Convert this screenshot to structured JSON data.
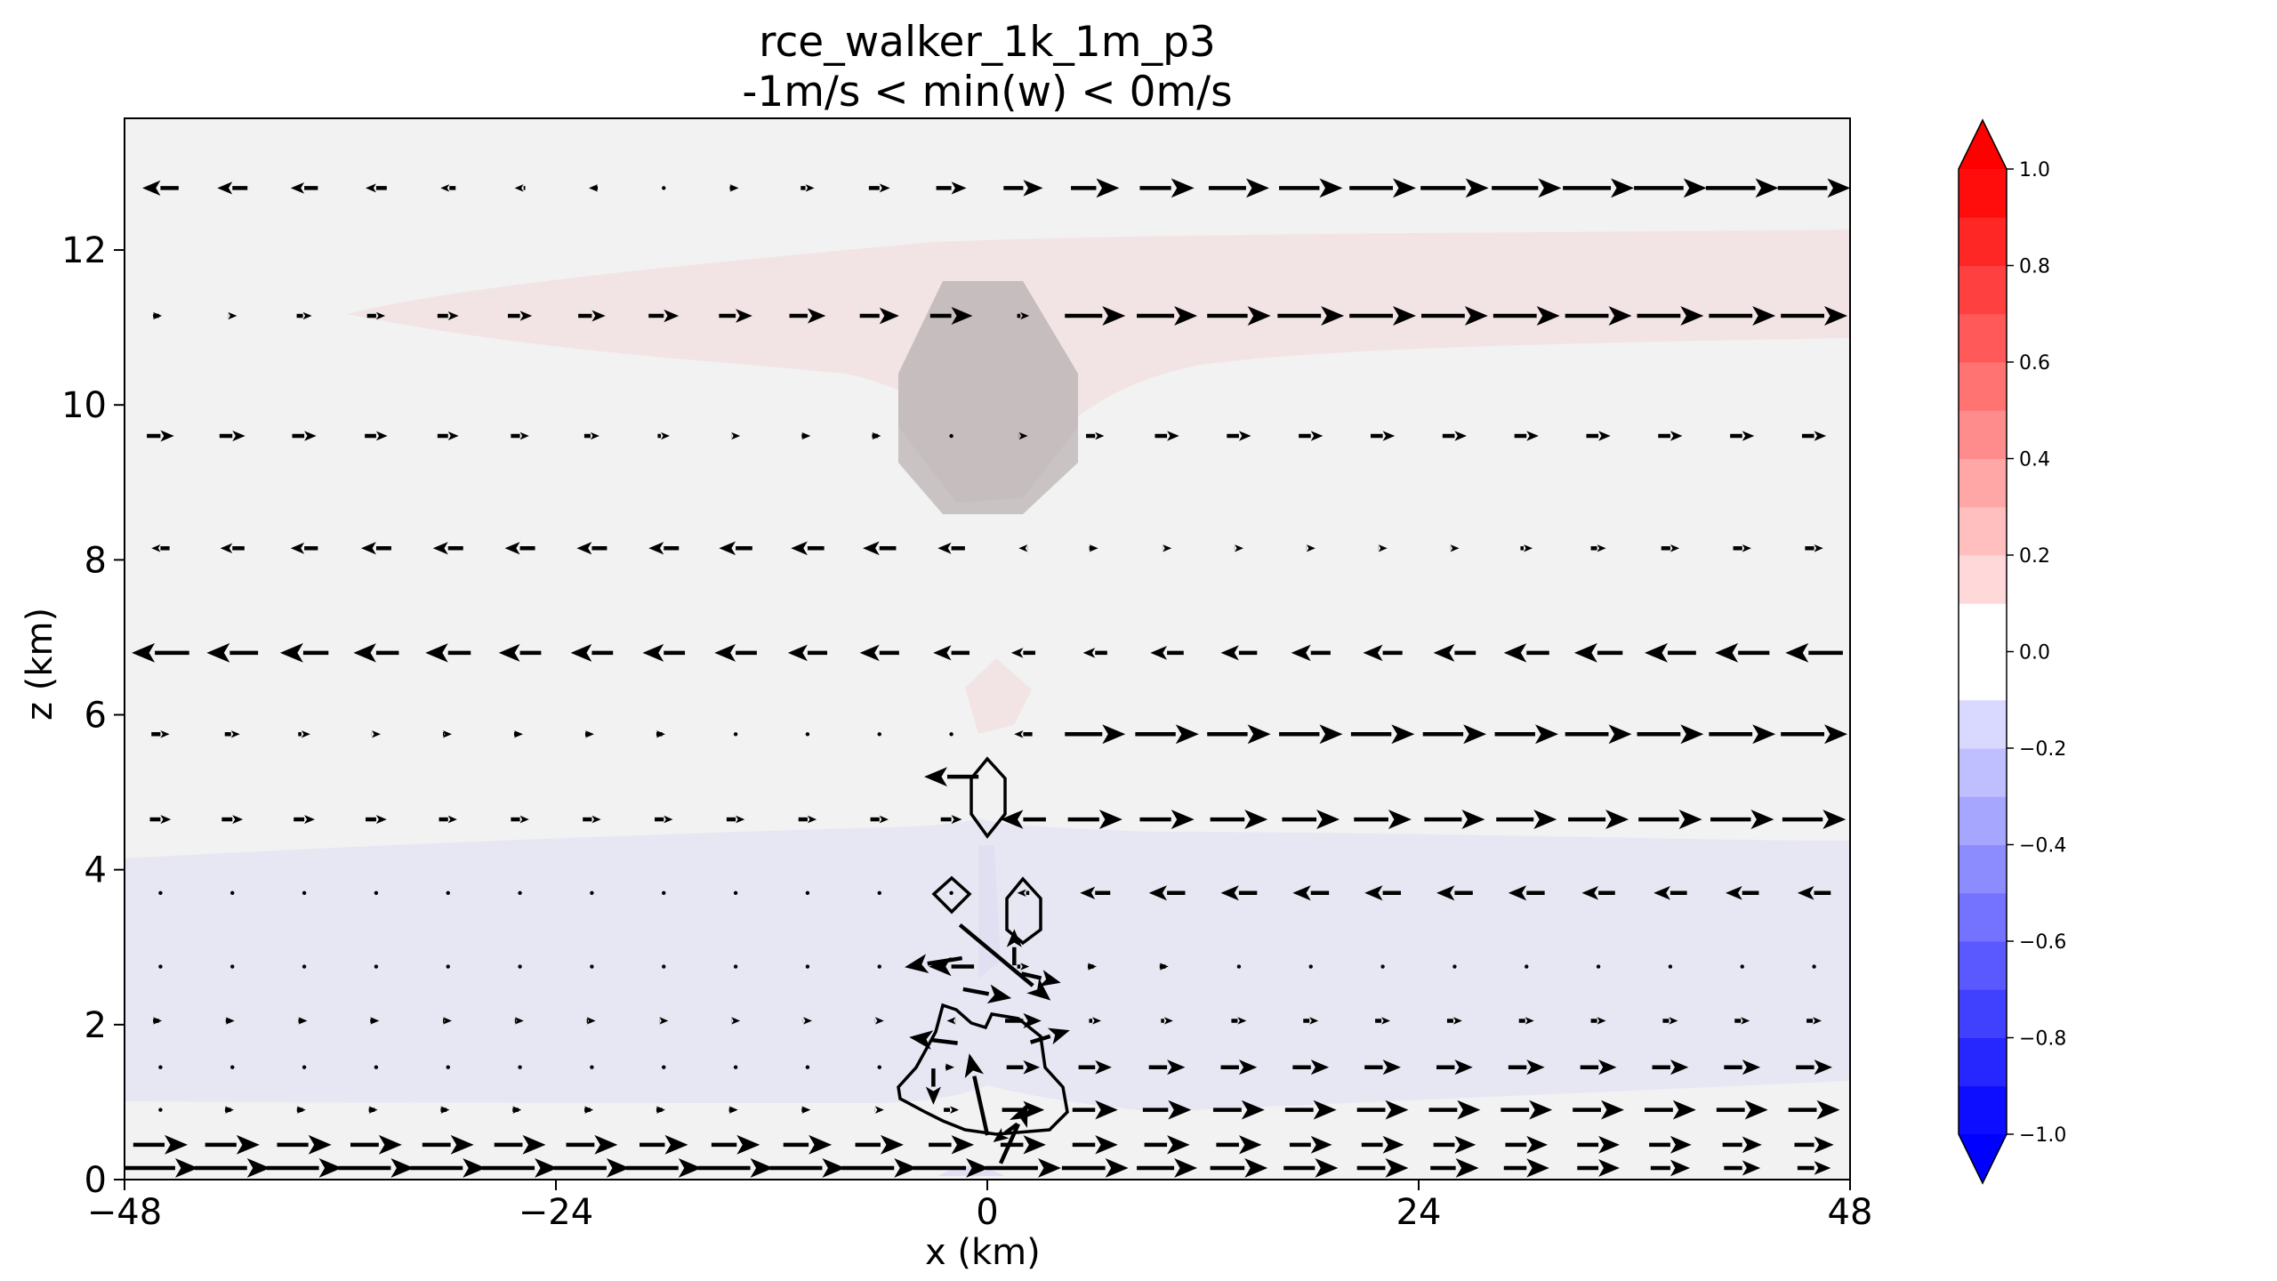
{
  "chart_data": {
    "type": "quiver+contourf",
    "title": "rce_walker_1k_1m_p3",
    "subtitle": "-1m/s < min(w) < 0m/s",
    "xlabel": "x (km)",
    "ylabel": "z (km)",
    "xlim": [
      -48,
      48
    ],
    "ylim": [
      0,
      13.7
    ],
    "xticks": [
      -48,
      -24,
      0,
      24,
      48
    ],
    "xtick_labels": [
      "−48",
      "−24",
      "0",
      "24",
      "48"
    ],
    "yticks": [
      0,
      2,
      4,
      6,
      8,
      10,
      12
    ],
    "ytick_labels": [
      "0",
      "2",
      "4",
      "6",
      "8",
      "10",
      "12"
    ],
    "grid": false,
    "colorbar": {
      "min": -1.0,
      "max": 1.0,
      "levels": 20,
      "extend": "both",
      "cmap": "bwr",
      "ticks": [
        1.0,
        0.8,
        0.6,
        0.4,
        0.2,
        0.0,
        -0.2,
        -0.4,
        -0.6,
        -0.8,
        -1.0
      ],
      "tick_labels": [
        "1.0",
        "0.8",
        "0.6",
        "0.4",
        "0.2",
        "0.0",
        "−0.2",
        "−0.4",
        "−0.6",
        "−0.8",
        "−1.0"
      ],
      "neg_color": "#0000ff",
      "pos_color": "#ff0000"
    },
    "background_field": [
      {
        "region": "upper positive band",
        "value": 0.03
      },
      {
        "region": "lower negative band",
        "value": -0.07
      }
    ],
    "quiver_rows": [
      {
        "z": 12.8,
        "u": [
          -1.2,
          -1.0,
          -0.9,
          -0.7,
          -0.5,
          -0.35,
          -0.2,
          0.0,
          0.2,
          0.45,
          0.7,
          1.0,
          1.3,
          1.6,
          1.8,
          2.0,
          2.1,
          2.2,
          2.25,
          2.3,
          2.35,
          2.4,
          2.4,
          2.4
        ]
      },
      {
        "z": 11.15,
        "u": [
          0.1,
          0.3,
          0.5,
          0.6,
          0.7,
          0.8,
          0.9,
          1.0,
          1.1,
          1.2,
          1.3,
          1.4,
          0.4,
          2.0,
          2.0,
          2.1,
          2.2,
          2.2,
          2.2,
          2.2,
          2.2,
          2.2,
          2.2,
          2.2
        ]
      },
      {
        "z": 9.6,
        "u": [
          0.9,
          0.85,
          0.8,
          0.75,
          0.7,
          0.6,
          0.5,
          0.4,
          0.3,
          0.2,
          0.1,
          0.0,
          0.3,
          0.6,
          0.8,
          0.8,
          0.8,
          0.8,
          0.8,
          0.8,
          0.8,
          0.8,
          0.8,
          0.8
        ]
      },
      {
        "z": 8.15,
        "u": [
          -0.6,
          -0.8,
          -0.9,
          -1.0,
          -1.0,
          -1.0,
          -1.0,
          -1.0,
          -1.1,
          -1.1,
          -1.1,
          -0.9,
          -0.3,
          0.2,
          0.3,
          0.3,
          0.3,
          0.3,
          0.3,
          0.4,
          0.5,
          0.6,
          0.6,
          0.6
        ]
      },
      {
        "z": 6.8,
        "u": [
          -1.9,
          -1.7,
          -1.6,
          -1.5,
          -1.5,
          -1.4,
          -1.4,
          -1.4,
          -1.4,
          -1.3,
          -1.3,
          -1.2,
          -0.8,
          -0.8,
          -1.1,
          -1.2,
          -1.3,
          -1.3,
          -1.4,
          -1.5,
          -1.6,
          -1.7,
          -1.8,
          -1.9
        ]
      },
      {
        "z": 5.75,
        "u": [
          0.6,
          0.5,
          0.4,
          0.3,
          0.25,
          0.2,
          0.15,
          0.1,
          0.05,
          0.0,
          0.0,
          0.0,
          -0.6,
          2.0,
          2.1,
          2.1,
          2.1,
          2.1,
          2.1,
          2.1,
          2.2,
          2.2,
          2.2,
          2.2
        ]
      },
      {
        "z": 4.65,
        "u": [
          0.7,
          0.7,
          0.7,
          0.7,
          0.6,
          0.6,
          0.6,
          0.6,
          0.6,
          0.6,
          0.6,
          0.7,
          -1.5,
          1.8,
          1.8,
          1.9,
          1.9,
          1.9,
          2.0,
          2.0,
          2.0,
          2.1,
          2.1,
          2.1
        ]
      },
      {
        "z": 3.7,
        "u": [
          0.0,
          0.0,
          0.0,
          0.0,
          0.0,
          0.0,
          0.0,
          0.0,
          0.0,
          0.0,
          0.0,
          0.0,
          -0.4,
          -1.0,
          -1.2,
          -1.2,
          -1.2,
          -1.2,
          -1.2,
          -1.2,
          -1.1,
          -1.1,
          -1.1,
          -1.1
        ]
      },
      {
        "z": 2.75,
        "u": [
          0.0,
          0.0,
          0.0,
          0.0,
          0.0,
          0.0,
          0.0,
          0.0,
          0.0,
          0.0,
          0.0,
          -1.5,
          0.4,
          0.1,
          0.1,
          0.0,
          0.0,
          0.0,
          0.0,
          0.0,
          0.0,
          0.0,
          0.0,
          0.0
        ]
      },
      {
        "z": 2.05,
        "u": [
          0.1,
          0.15,
          0.2,
          0.2,
          0.25,
          0.25,
          0.25,
          0.3,
          0.3,
          0.3,
          0.3,
          -0.3,
          1.2,
          0.4,
          0.4,
          0.5,
          0.5,
          0.5,
          0.5,
          0.5,
          0.5,
          0.5,
          0.5,
          0.5
        ]
      },
      {
        "z": 1.45,
        "u": [
          0.0,
          0.05,
          0.05,
          0.05,
          0.05,
          0.05,
          0.05,
          0.05,
          0.05,
          0.05,
          0.05,
          0.2,
          1.1,
          1.1,
          1.2,
          1.2,
          1.2,
          1.2,
          1.2,
          1.2,
          1.2,
          1.2,
          1.2,
          1.2
        ]
      },
      {
        "z": 0.9,
        "u": [
          0.05,
          0.1,
          0.1,
          0.1,
          0.1,
          0.1,
          0.1,
          0.1,
          0.15,
          0.2,
          0.3,
          0.5,
          1.4,
          1.5,
          1.6,
          1.7,
          1.7,
          1.7,
          1.7,
          1.7,
          1.7,
          1.7,
          1.7,
          1.7
        ]
      },
      {
        "z": 0.45,
        "u": [
          1.8,
          1.8,
          1.8,
          1.7,
          1.7,
          1.7,
          1.7,
          1.6,
          1.6,
          1.6,
          1.6,
          1.5,
          1.5,
          1.5,
          1.5,
          1.5,
          1.4,
          1.4,
          1.4,
          1.4,
          1.4,
          1.4,
          1.3,
          1.3
        ]
      },
      {
        "z": 0.15,
        "u": [
          2.5,
          2.5,
          2.5,
          2.5,
          2.5,
          2.5,
          2.5,
          2.5,
          2.5,
          2.5,
          2.5,
          2.5,
          2.5,
          2.2,
          2.0,
          1.9,
          1.8,
          1.7,
          1.6,
          1.5,
          1.4,
          1.3,
          1.2,
          1.1
        ]
      }
    ],
    "convective_core_arrows": [
      {
        "x": -2.0,
        "z": 5.2,
        "u": -1.8,
        "w": 0.0
      },
      {
        "x": -3.0,
        "z": 2.8,
        "u": -1.9,
        "w": -0.3
      },
      {
        "x": 1.5,
        "z": 3.0,
        "u": 0.0,
        "w": 1.2
      },
      {
        "x": 3.0,
        "z": 2.6,
        "u": 1.3,
        "w": -0.3
      },
      {
        "x": 0.0,
        "z": 2.4,
        "u": 1.6,
        "w": -0.3
      },
      {
        "x": -3.0,
        "z": 1.8,
        "u": -1.6,
        "w": 0.2
      },
      {
        "x": 3.5,
        "z": 1.85,
        "u": 1.3,
        "w": 0.4
      },
      {
        "x": -3.0,
        "z": 1.2,
        "u": 0.0,
        "w": -1.2
      },
      {
        "x": 1.0,
        "z": 2.8,
        "u": 3.0,
        "w": -2.5
      },
      {
        "x": -0.5,
        "z": 1.1,
        "u": -0.6,
        "w": 2.7
      },
      {
        "x": 1.5,
        "z": 0.6,
        "u": 0.9,
        "w": 2.0
      },
      {
        "x": 1.0,
        "z": 0.6,
        "u": -0.8,
        "w": -0.6
      }
    ]
  }
}
